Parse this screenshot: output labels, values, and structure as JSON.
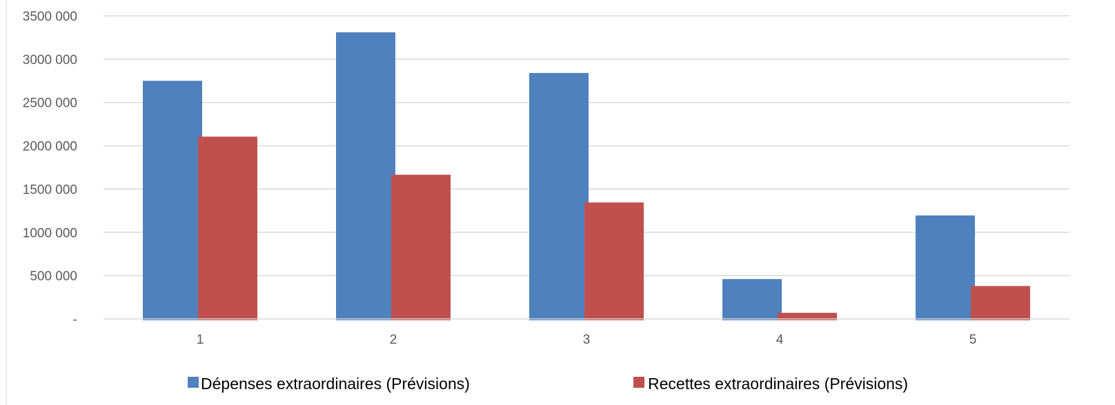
{
  "chart_data": {
    "type": "bar",
    "categories": [
      "1",
      "2",
      "3",
      "4",
      "5"
    ],
    "series": [
      {
        "name": "Dépenses extraordinaires (Prévisions)",
        "color": "#4F81BD",
        "values": [
          2750000,
          3310000,
          2840000,
          460000,
          1195000
        ]
      },
      {
        "name": "Recettes extraordinaires (Prévisions)",
        "color": "#C0504D",
        "values": [
          2105000,
          1665000,
          1345000,
          70000,
          380000
        ]
      }
    ],
    "ylim": [
      0,
      3500000
    ],
    "y_ticks": [
      {
        "value": 0,
        "label": "-"
      },
      {
        "value": 500000,
        "label": "500 000"
      },
      {
        "value": 1000000,
        "label": "1000 000"
      },
      {
        "value": 1500000,
        "label": "1500 000"
      },
      {
        "value": 2000000,
        "label": "2000 000"
      },
      {
        "value": 2500000,
        "label": "2500 000"
      },
      {
        "value": 3000000,
        "label": "3000 000"
      },
      {
        "value": 3500000,
        "label": "3500 000"
      }
    ],
    "title": "",
    "xlabel": "",
    "ylabel": "",
    "grid": true,
    "legend_position": "bottom",
    "gridline_color": "#D9D9D9",
    "axis_text_color": "#595959"
  }
}
